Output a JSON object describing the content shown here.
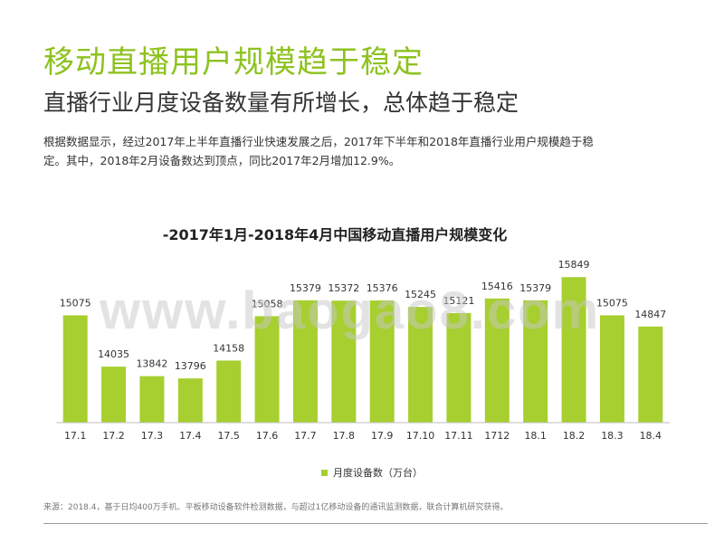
{
  "header": {
    "title": "移动直播用户规模趋于稳定",
    "subtitle": "直播行业月度设备数量有所增长，总体趋于稳定",
    "description": "根据数据显示，经过2017年上半年直播行业快速发展之后，2017年下半年和2018年直播行业用户规模趋于稳定。其中，2018年2月设备数达到顶点，同比2017年2月增加12.9%。"
  },
  "watermark": "www.baogao8.com",
  "footer": {
    "source": "来源：2018.4，基于日均400万手机、平板移动设备软件检测数据，与超过1亿移动设备的通讯监测数据，联合计算机研究获得。"
  },
  "colors": {
    "accent": "#8dc21f",
    "bar": "#a6cf2f"
  },
  "chart_data": {
    "type": "bar",
    "title": "-2017年1月-2018年4月中国移动直播用户规模变化",
    "categories": [
      "17.1",
      "17.2",
      "17.3",
      "17.4",
      "17.5",
      "17.6",
      "17.7",
      "17.8",
      "17.9",
      "17.10",
      "17.11",
      "1712",
      "18.1",
      "18.2",
      "18.3",
      "18.4"
    ],
    "series": [
      {
        "name": "月度设备数（万台）",
        "values": [
          15075,
          14035,
          13842,
          13796,
          14158,
          15058,
          15379,
          15372,
          15376,
          15245,
          15121,
          15416,
          15379,
          15849,
          15075,
          14847
        ]
      }
    ],
    "ylim": [
      12900,
      16000
    ],
    "grid": false,
    "legend": "bottom"
  }
}
